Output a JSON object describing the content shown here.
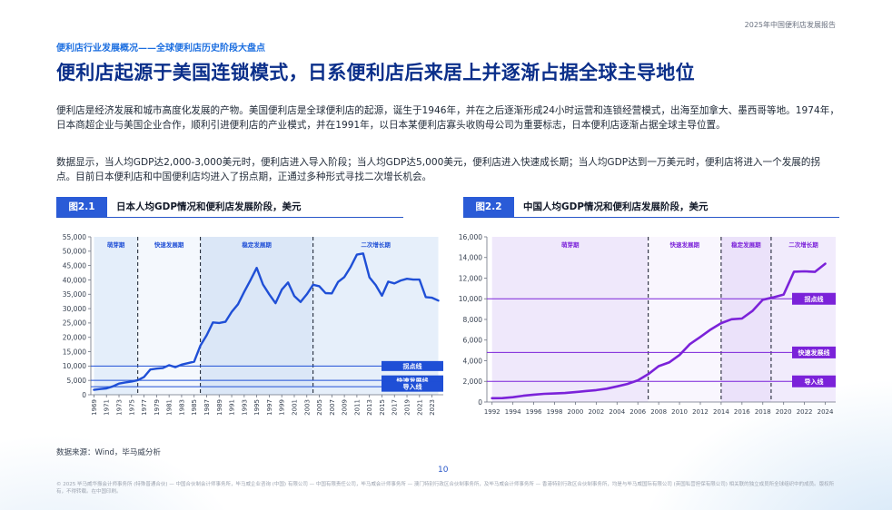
{
  "header": {
    "report_title": "2025年中国便利店发展报告"
  },
  "section": {
    "subtitle": "便利店行业发展概况——全球便利店历史阶段大盘点",
    "headline": "便利店起源于美国连锁模式，日系便利店后来居上并逐渐占据全球主导地位"
  },
  "body": {
    "para1": "便利店是经济发展和城市高度化发展的产物。美国便利店是全球便利店的起源，诞生于1946年，并在之后逐渐形成24小时运营和连锁经营模式，出海至加拿大、墨西哥等地。1974年，日本商超企业与美国企业合作，顺利引进便利店的产业模式，并在1991年，以日本某便利店寡头收购母公司为重要标志，日本便利店逐渐占据全球主导位置。",
    "para2": "数据显示，当人均GDP达2,000-3,000美元时，便利店进入导入阶段；当人均GDP达5,000美元，便利店进入快速成长期；当人均GDP达到一万美元时，便利店将进入一个发展的拐点。目前日本便利店和中国便利店均进入了拐点期，正通过多种形式寻找二次增长机会。"
  },
  "figures": {
    "fig1": {
      "badge": "图2.1",
      "title": "日本人均GDP情况和便利店发展阶段，美元"
    },
    "fig2": {
      "badge": "图2.2",
      "title": "中国人均GDP情况和便利店发展阶段，美元"
    }
  },
  "source": "数据来源：Wind，毕马威分析",
  "page_number": "10",
  "footer": "© 2025 毕马威华振会计师事务所 (特殊普通合伙) — 中国合伙制会计师事务所，毕马威企业咨询 (中国) 有限公司 — 中国有限责任公司，毕马威会计师事务所 — 澳门特别行政区合伙制事务所，及毕马威会计师事务所 — 香港特别行政区合伙制事务所，均是与毕马威国际有限公司 (英国私营担保有限公司) 相关联的独立成员所全球组织中的成员。版权所有，不得转载。在中国印刷。",
  "colors": {
    "brand": "#0b2f8a",
    "accent": "#1d6fe0",
    "japan_line": "#1f4fd6",
    "china_line": "#7b22d9",
    "japan_shade": "#dce8f8",
    "china_shade": "#ece4fb"
  },
  "chart_data": [
    {
      "type": "line",
      "title": "日本人均GDP情况和便利店发展阶段，美元",
      "xlabel": "",
      "ylabel": "",
      "ylim": [
        0,
        55000
      ],
      "yticks": [
        0,
        5000,
        10000,
        15000,
        20000,
        25000,
        30000,
        35000,
        40000,
        45000,
        50000,
        55000
      ],
      "xticks": [
        1969,
        1971,
        1973,
        1975,
        1977,
        1979,
        1981,
        1983,
        1985,
        1987,
        1989,
        1991,
        1993,
        1995,
        1997,
        1999,
        2001,
        2003,
        2005,
        2007,
        2009,
        2011,
        2013,
        2015,
        2017,
        2019,
        2021,
        2023
      ],
      "x": [
        1969,
        1970,
        1971,
        1972,
        1973,
        1974,
        1975,
        1976,
        1977,
        1978,
        1979,
        1980,
        1981,
        1982,
        1983,
        1984,
        1985,
        1986,
        1987,
        1988,
        1989,
        1990,
        1991,
        1992,
        1993,
        1994,
        1995,
        1996,
        1997,
        1998,
        1999,
        2000,
        2001,
        2002,
        2003,
        2004,
        2005,
        2006,
        2007,
        2008,
        2009,
        2010,
        2011,
        2012,
        2013,
        2014,
        2015,
        2016,
        2017,
        2018,
        2019,
        2020,
        2021,
        2022,
        2023,
        2024
      ],
      "series": [
        {
          "values": [
            1700,
            2000,
            2200,
            2900,
            3900,
            4300,
            4600,
            5100,
            6200,
            8800,
            9100,
            9300,
            10300,
            9600,
            10500,
            11000,
            11500,
            17100,
            20700,
            25200,
            25000,
            25400,
            28900,
            31500,
            35800,
            39900,
            44200,
            38400,
            35000,
            31900,
            36600,
            39100,
            34400,
            32300,
            35000,
            38300,
            37800,
            35400,
            35300,
            39300,
            41000,
            44500,
            48800,
            49200,
            40900,
            38200,
            34500,
            39400,
            38800,
            39800,
            40400,
            40100,
            40100,
            34000,
            33800,
            32800
          ]
        }
      ],
      "stages": [
        {
          "label": "萌芽期",
          "from": 1969,
          "to": 1976
        },
        {
          "label": "快速发展期",
          "from": 1976,
          "to": 1986
        },
        {
          "label": "稳定发展期",
          "from": 1986,
          "to": 2004
        },
        {
          "label": "二次增长期",
          "from": 2004,
          "to": 2024
        }
      ],
      "reference_lines": [
        {
          "label": "拐点线",
          "value": 10000
        },
        {
          "label": "快速发展线",
          "value": 5000
        },
        {
          "label": "导入线",
          "value": 2800
        }
      ],
      "grid": false,
      "legend": "none"
    },
    {
      "type": "line",
      "title": "中国人均GDP情况和便利店发展阶段，美元",
      "xlabel": "",
      "ylabel": "",
      "ylim": [
        0,
        16000
      ],
      "yticks": [
        0,
        2000,
        4000,
        6000,
        8000,
        10000,
        12000,
        14000,
        16000
      ],
      "xticks": [
        1992,
        1994,
        1996,
        1998,
        2000,
        2002,
        2004,
        2006,
        2008,
        2010,
        2012,
        2014,
        2016,
        2018,
        2020,
        2022,
        2024
      ],
      "x": [
        1992,
        1993,
        1994,
        1995,
        1996,
        1997,
        1998,
        1999,
        2000,
        2001,
        2002,
        2003,
        2004,
        2005,
        2006,
        2007,
        2008,
        2009,
        2010,
        2011,
        2012,
        2013,
        2014,
        2015,
        2016,
        2017,
        2018,
        2019,
        2020,
        2021,
        2022,
        2023,
        2024
      ],
      "series": [
        {
          "values": [
            370,
            380,
            470,
            610,
            710,
            790,
            830,
            870,
            960,
            1060,
            1150,
            1290,
            1510,
            1750,
            2100,
            2700,
            3470,
            3830,
            4550,
            5610,
            6300,
            7020,
            7640,
            8020,
            8090,
            8820,
            9910,
            10140,
            10410,
            12620,
            12660,
            12610,
            13400
          ]
        }
      ],
      "stages": [
        {
          "label": "萌芽期",
          "from": 1992,
          "to": 2007
        },
        {
          "label": "快速发展期",
          "from": 2007,
          "to": 2014
        },
        {
          "label": "稳定发展期",
          "from": 2014,
          "to": 2018.8
        },
        {
          "label": "二次增长期",
          "from": 2018.8,
          "to": 2025
        }
      ],
      "reference_lines": [
        {
          "label": "拐点线",
          "value": 10000
        },
        {
          "label": "快速发展线",
          "value": 4800
        },
        {
          "label": "导入线",
          "value": 2000
        }
      ],
      "grid": false,
      "legend": "none"
    }
  ]
}
